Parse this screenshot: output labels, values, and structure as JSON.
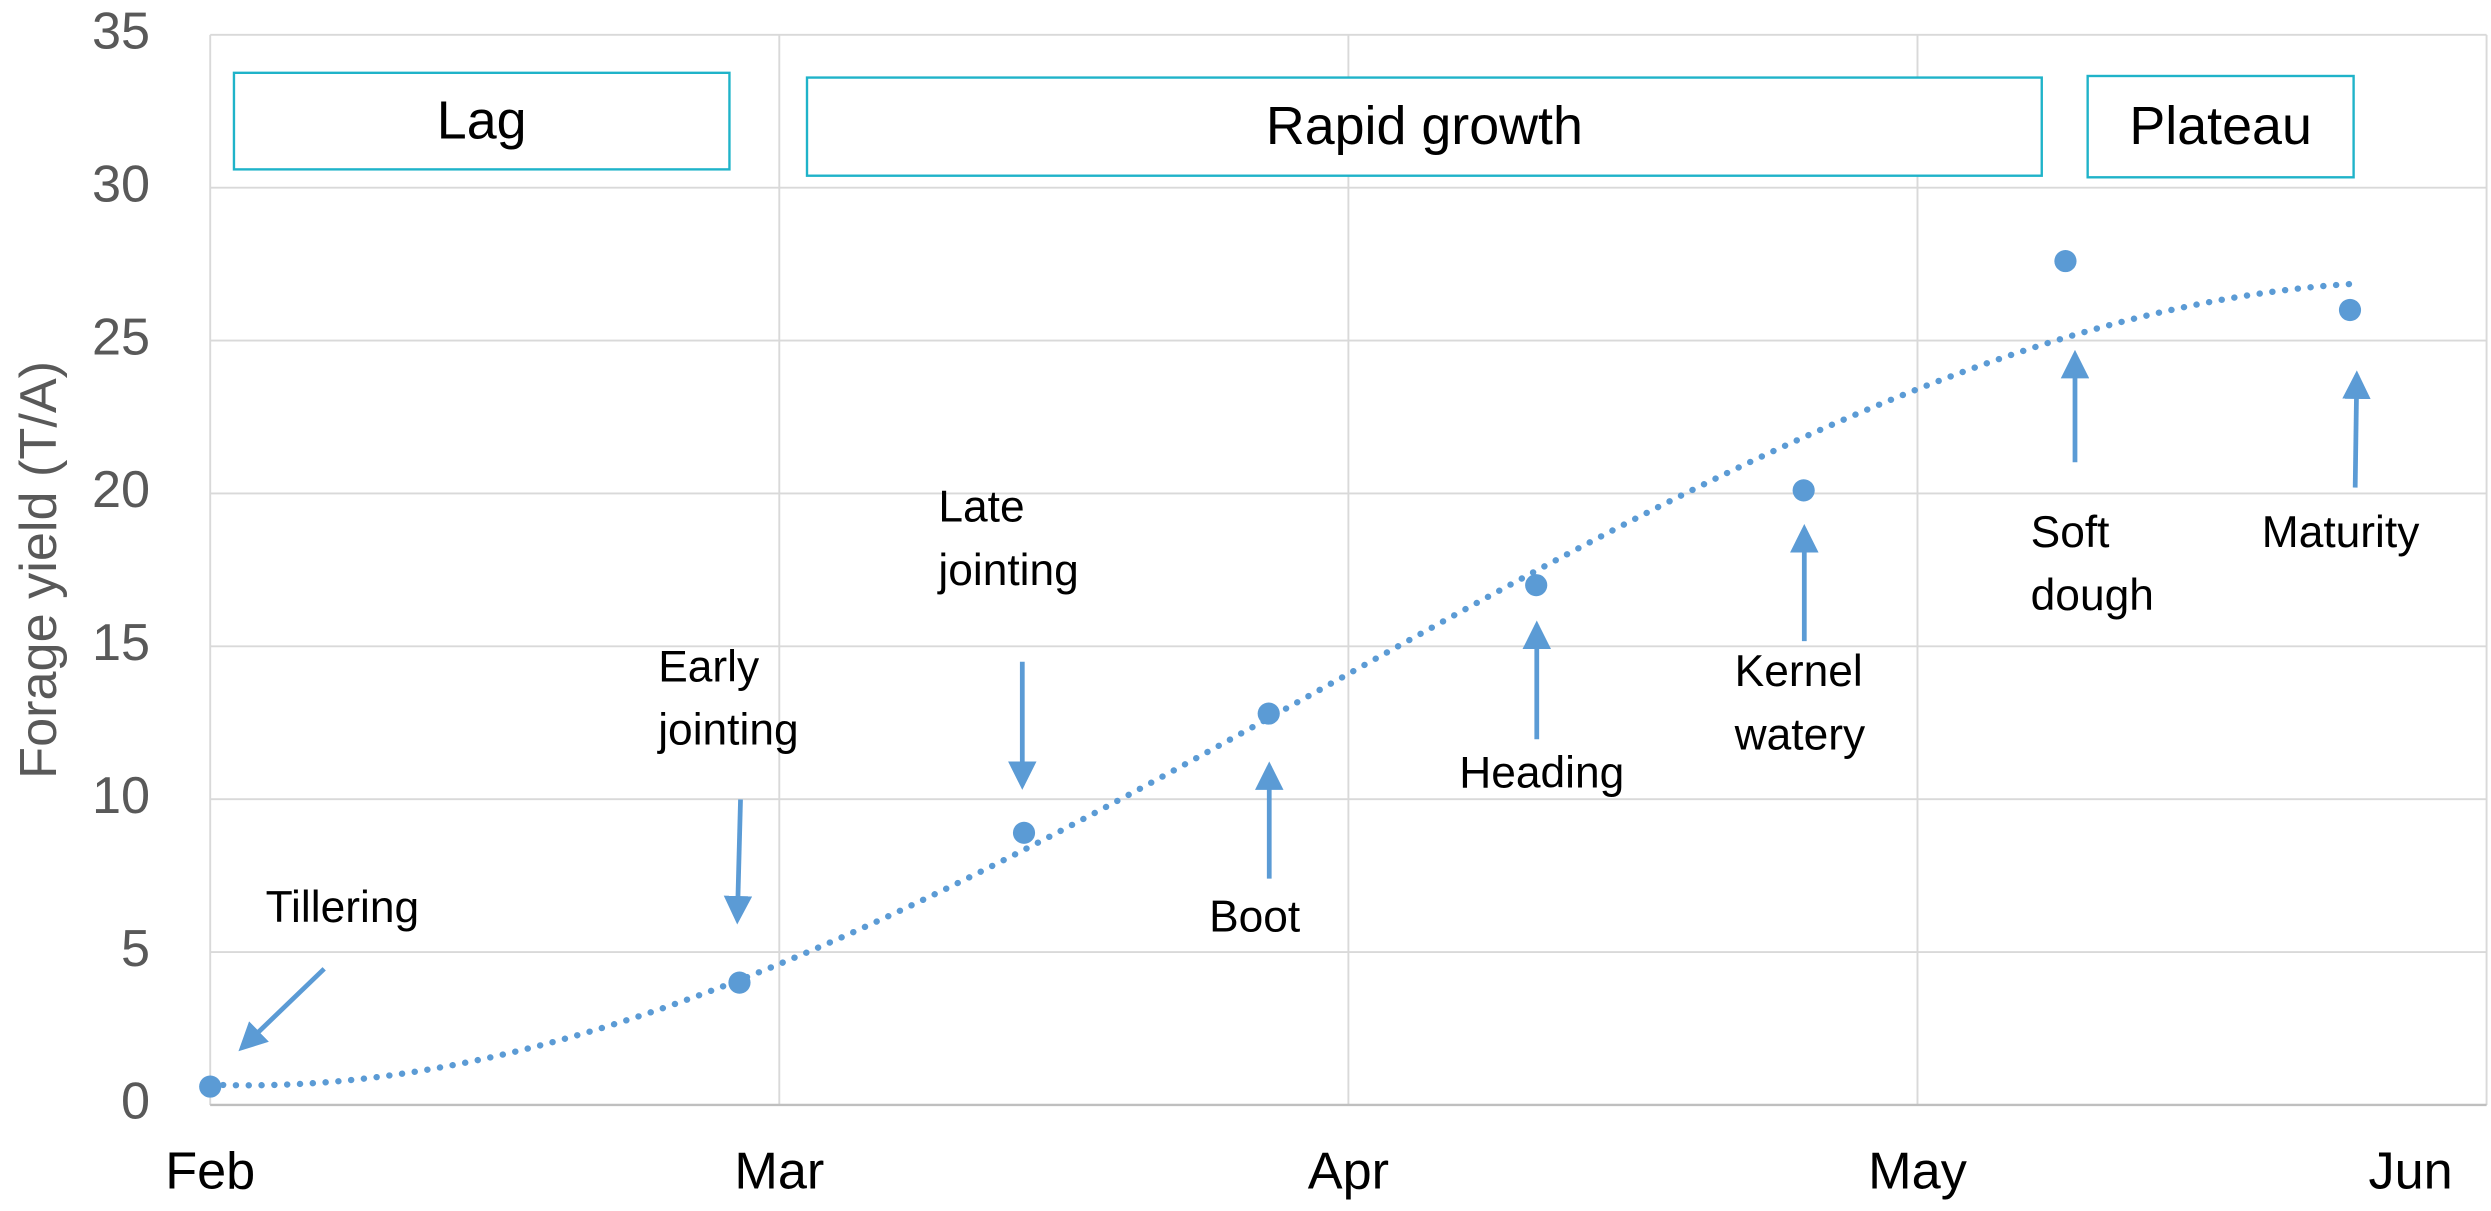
{
  "chart_data": {
    "type": "scatter",
    "y_label": "Forage yield (T/A)",
    "x": [
      0.0,
      0.93,
      1.43,
      1.86,
      2.33,
      2.8,
      3.26,
      3.76
    ],
    "values": [
      0.6,
      4.0,
      8.9,
      12.8,
      17.0,
      20.1,
      27.6,
      26.0
    ],
    "color": "#5b9bd5",
    "trendline": "polynomial",
    "trendline_order": 3,
    "xlim": [
      0,
      4
    ],
    "xticks": [
      {
        "value": 0,
        "label": "Feb"
      },
      {
        "value": 1,
        "label": "Mar"
      },
      {
        "value": 2,
        "label": "Apr"
      },
      {
        "value": 3,
        "label": "May"
      },
      {
        "value": 4,
        "label": "Jun"
      }
    ],
    "ylim": [
      0,
      35
    ],
    "yticks": [
      0,
      5,
      10,
      15,
      20,
      25,
      30,
      35
    ],
    "grid": true,
    "annotations": [
      [
        "Tillering"
      ],
      [
        "Early",
        "jointing"
      ],
      [
        "Late",
        "jointing"
      ],
      [
        "Boot"
      ],
      [
        "Heading"
      ],
      [
        "Kernel",
        "watery"
      ],
      [
        "Soft",
        "dough"
      ],
      [
        "Maturity"
      ]
    ],
    "phases": [
      "Lag",
      "Rapid growth",
      "Plateau"
    ],
    "phase_color": "#1fb3c9"
  }
}
